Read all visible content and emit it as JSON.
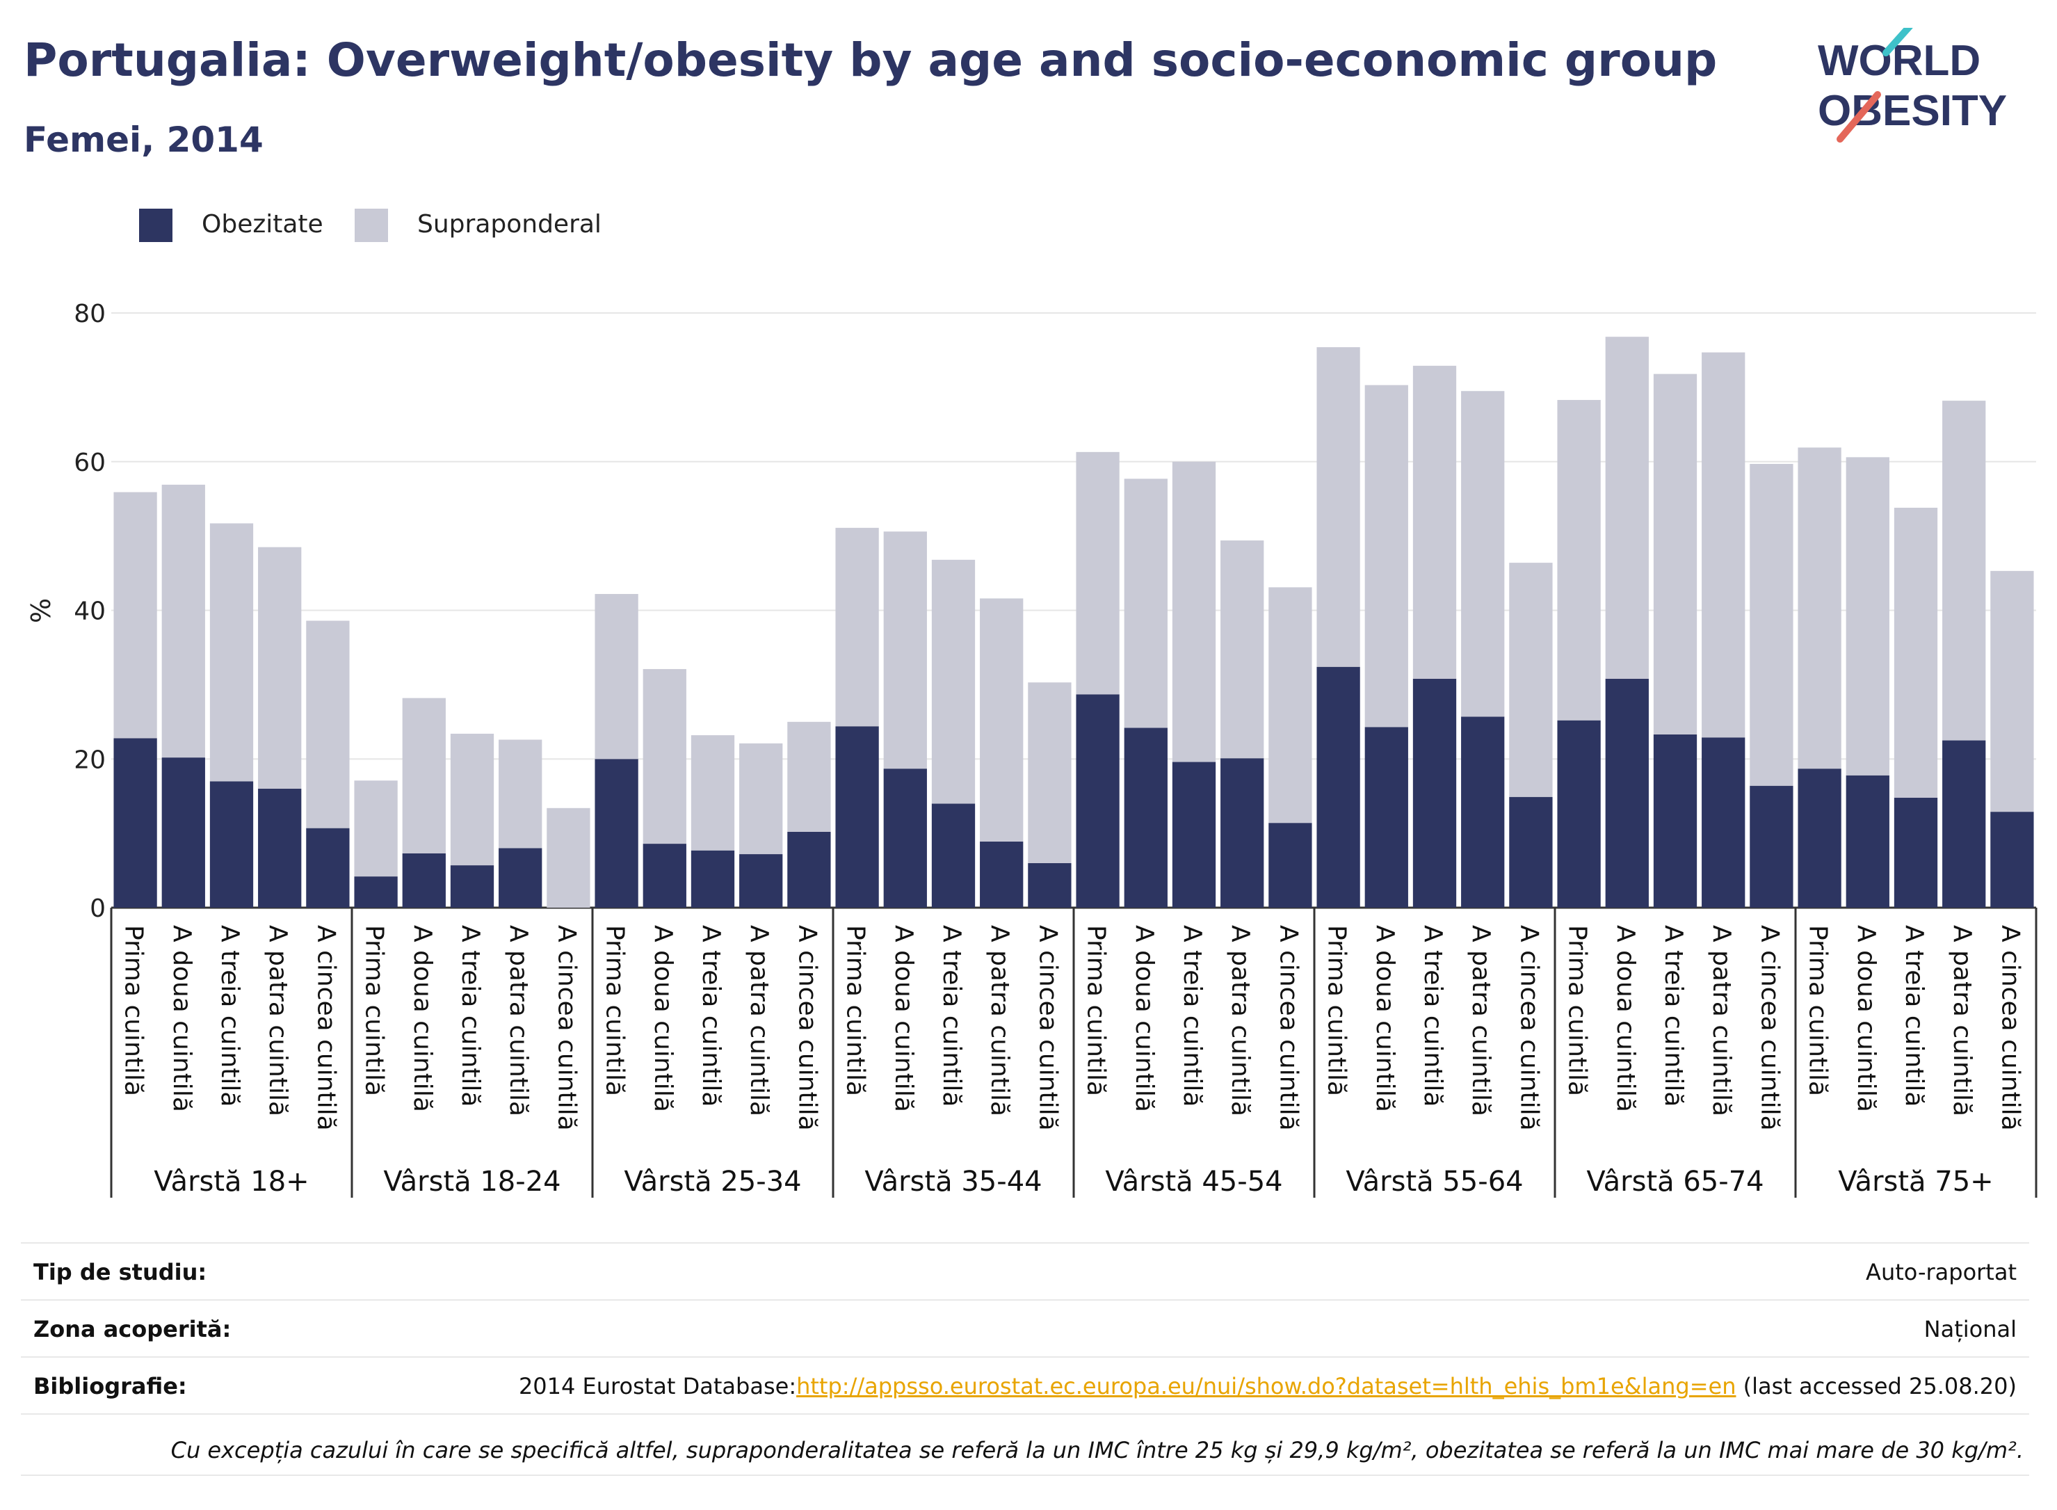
{
  "header": {
    "title": "Portugalia: Overweight/obesity by age and socio-economic group",
    "subtitle": "Femei, 2014",
    "logo_line1": "WORLD",
    "logo_line2": "OBESITY"
  },
  "legend": [
    {
      "label": "Obezitate",
      "color": "#2d3561"
    },
    {
      "label": "Supraponderal",
      "color": "#c9cad6"
    }
  ],
  "chart_data": {
    "type": "bar",
    "stacked": true,
    "ylabel": "%",
    "ylim": [
      0,
      80
    ],
    "yticks": [
      0,
      20,
      40,
      60,
      80
    ],
    "grid": true,
    "legend_position": "top-left",
    "group_labels": [
      "Vârstă 18+",
      "Vârstă 18-24",
      "Vârstă 25-34",
      "Vârstă 35-44",
      "Vârstă 45-54",
      "Vârstă 55-64",
      "Vârstă 65-74",
      "Vârstă 75+"
    ],
    "categories": [
      "Prima cuintilă",
      "A doua cuintilă",
      "A treia cuintilă",
      "A patra cuintilă",
      "A cincea cuintilă"
    ],
    "series": [
      {
        "name": "Obezitate",
        "color": "#2d3561",
        "values": [
          [
            22.8,
            20.2,
            17.0,
            16.0,
            10.7
          ],
          [
            4.2,
            7.3,
            5.7,
            8.0,
            0.0
          ],
          [
            20.0,
            8.6,
            7.7,
            7.2,
            10.2
          ],
          [
            24.4,
            18.7,
            14.0,
            8.9,
            6.0
          ],
          [
            28.7,
            24.2,
            19.6,
            20.1,
            11.4
          ],
          [
            32.4,
            24.3,
            30.8,
            25.7,
            14.9
          ],
          [
            25.2,
            30.8,
            23.3,
            22.9,
            16.4
          ],
          [
            18.7,
            17.8,
            14.8,
            22.5,
            12.9
          ]
        ]
      },
      {
        "name": "Supraponderal",
        "color": "#c9cad6",
        "values": [
          [
            33.1,
            36.7,
            34.7,
            32.5,
            27.9
          ],
          [
            12.9,
            20.9,
            17.7,
            14.6,
            13.4
          ],
          [
            22.2,
            23.5,
            15.5,
            14.9,
            14.8
          ],
          [
            26.7,
            31.9,
            32.8,
            32.7,
            24.3
          ],
          [
            32.6,
            33.5,
            40.4,
            29.3,
            31.7
          ],
          [
            43.0,
            46.0,
            42.1,
            43.8,
            31.5
          ],
          [
            43.1,
            46.0,
            48.5,
            51.8,
            43.3
          ],
          [
            43.2,
            42.8,
            39.0,
            45.7,
            32.4
          ]
        ]
      }
    ]
  },
  "info_table": {
    "study_type": {
      "label": "Tip de studiu:",
      "value": "Auto-raportat"
    },
    "coverage": {
      "label": "Zona acoperită:",
      "value": "Național"
    },
    "bibliography": {
      "label": "Bibliografie:",
      "prefix": "2014 Eurostat Database:",
      "link": "http://appsso.eurostat.ec.europa.eu/nui/show.do?dataset=hlth_ehis_bm1e&lang=en",
      "suffix": " (last accessed 25.08.20)"
    },
    "footnote": "Cu excepția cazului în care se specifică altfel, supraponderalitatea se referă la un IMC între 25 kg și 29,9 kg/m², obezitatea se referă la un IMC mai mare de 30 kg/m²."
  }
}
